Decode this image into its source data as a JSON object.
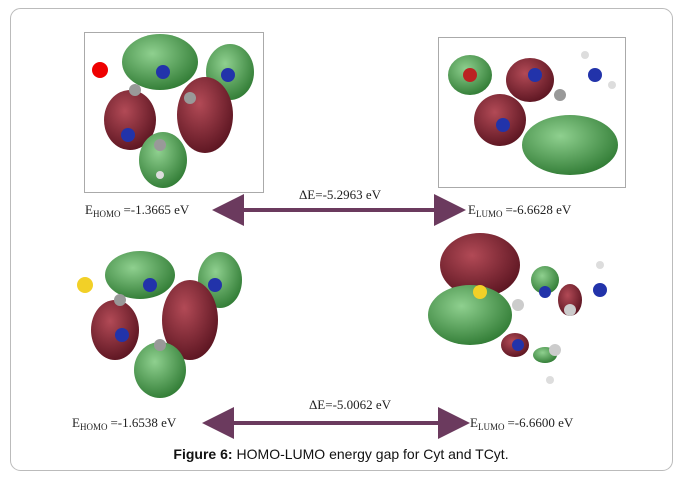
{
  "figure": {
    "caption_label": "Figure 6:",
    "caption_text": "HOMO-LUMO energy gap for Cyt and TCyt.",
    "rows": [
      {
        "homo": {
          "symbol": "E",
          "subscript": "HOMO",
          "value": "=-1.3665 eV"
        },
        "gap": "ΔE=-5.2963 eV",
        "lumo": {
          "symbol": "E",
          "subscript": "LUMO",
          "value": "=-6.6628 eV"
        }
      },
      {
        "homo": {
          "symbol": "E",
          "subscript": "HOMO",
          "value": "=-1.6538 eV"
        },
        "gap": "ΔE=-5.0062 eV",
        "lumo": {
          "symbol": "E",
          "subscript": "LUMO",
          "value": "=-6.6600 eV"
        }
      }
    ]
  }
}
